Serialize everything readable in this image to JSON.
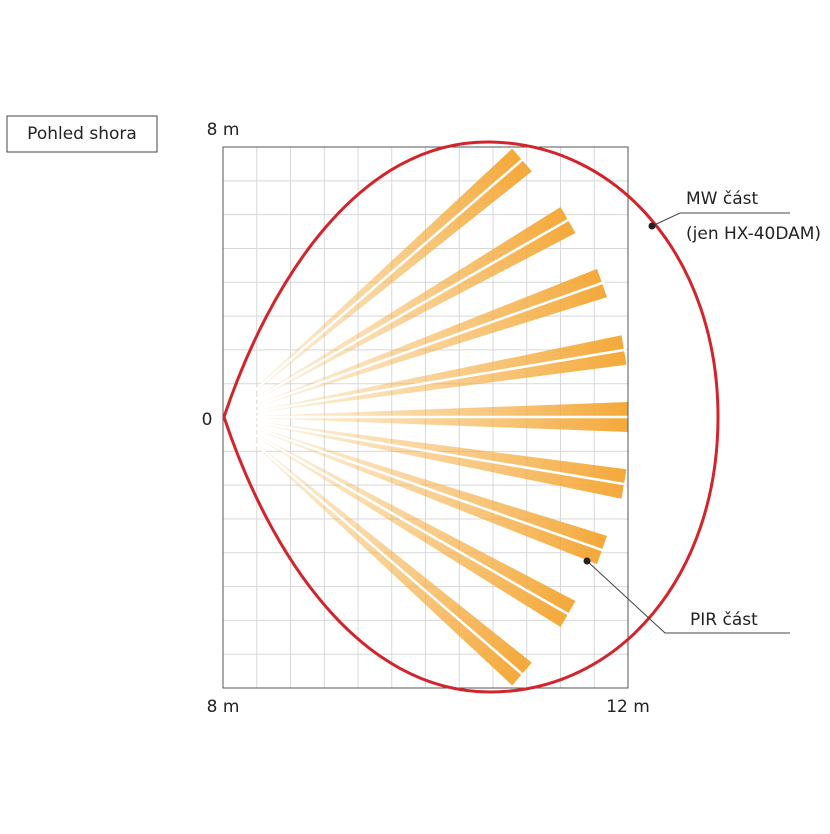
{
  "label_box": "Pohled shora",
  "axis_labels": {
    "top_left": "8 m",
    "origin": "0",
    "bottom_left": "8 m",
    "bottom_right": "12 m"
  },
  "callouts": {
    "mw_line1": "MW část",
    "mw_line2": "(jen HX-40DAM)",
    "pir": "PIR část"
  }
}
